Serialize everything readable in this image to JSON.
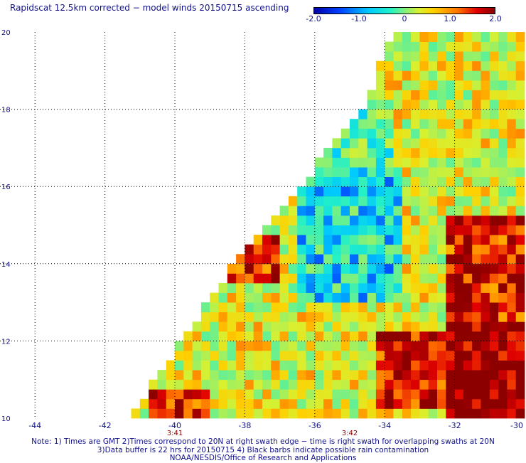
{
  "chart_data": {
    "type": "heatmap",
    "title": "Rapidscat 12.5km corrected − model winds 20150715 ascending",
    "xlim": [
      -45,
      -30
    ],
    "ylim": [
      10,
      20
    ],
    "x_ticks": [
      "-44",
      "-42",
      "-40",
      "-38",
      "-36",
      "-34",
      "-32",
      "-30"
    ],
    "x_tick_values": [
      -44,
      -42,
      -40,
      -38,
      -36,
      -34,
      -32,
      -30
    ],
    "y_ticks": [
      "10",
      "12",
      "14",
      "16",
      "18",
      "20"
    ],
    "y_tick_values": [
      10,
      12,
      14,
      16,
      18,
      20
    ],
    "grid": true,
    "time_labels": [
      {
        "lon": -40,
        "text": "3:41"
      },
      {
        "lon": -35,
        "text": "3:42"
      }
    ],
    "colorbar": {
      "min": -2.0,
      "max": 2.0,
      "ticks": [
        "-2.0",
        "-1.0",
        "0",
        "1.0",
        "2.0"
      ],
      "tick_values": [
        -2.0,
        -1.0,
        0,
        1.0,
        2.0
      ],
      "colors": [
        "#0000a8",
        "#0040ff",
        "#00c8ff",
        "#22f0c8",
        "#7ef07e",
        "#d8f030",
        "#ffd000",
        "#ff7000",
        "#e00000",
        "#8c0000"
      ]
    },
    "swath_edge": [
      [
        -41.3,
        10
      ],
      [
        -38.3,
        14
      ],
      [
        -36.0,
        16.5
      ],
      [
        -34.5,
        18.2
      ],
      [
        -33.8,
        20
      ]
    ],
    "value_regions": [
      {
        "lon": [
          -32.2,
          -30
        ],
        "lat": [
          10,
          12.5
        ],
        "value": 2.0
      },
      {
        "lon": [
          -32.2,
          -30
        ],
        "lat": [
          12.5,
          15.2
        ],
        "value": 1.5
      },
      {
        "lon": [
          -34.2,
          -32.2
        ],
        "lat": [
          10.2,
          12.2
        ],
        "value": 1.6
      },
      {
        "lon": [
          -38.5,
          -37.0
        ],
        "lat": [
          13.5,
          14.8
        ],
        "value": 1.4
      },
      {
        "lon": [
          -40.8,
          -39.0
        ],
        "lat": [
          10,
          10.8
        ],
        "value": 1.5
      },
      {
        "lon": [
          -36.6,
          -33.6
        ],
        "lat": [
          13.0,
          16.5
        ],
        "value": -0.8
      },
      {
        "lon": [
          -35.6,
          -33.8
        ],
        "lat": [
          16.5,
          18.2
        ],
        "value": -0.5
      }
    ],
    "background_value": 0.3
  },
  "notes": {
    "line1": "Note: 1) Times are GMT 2)Times correspond to 20N at right swath edge − time is right swath for overlapping swaths at 20N",
    "line2": "3)Data buffer is 22 hrs for 20150715 4) Black barbs indicate possible rain contamination",
    "line3": "NOAA/NESDIS/Office of Research and Applications"
  }
}
